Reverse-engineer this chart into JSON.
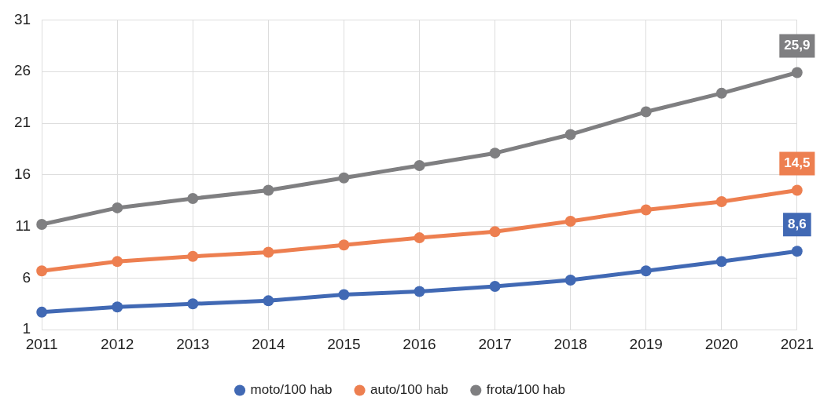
{
  "chart_data": {
    "type": "line",
    "categories": [
      "2011",
      "2012",
      "2013",
      "2014",
      "2015",
      "2016",
      "2017",
      "2018",
      "2019",
      "2020",
      "2021"
    ],
    "series": [
      {
        "name": "moto/100 hab",
        "color": "#4169b4",
        "values": [
          2.7,
          3.2,
          3.5,
          3.8,
          4.4,
          4.7,
          5.2,
          5.8,
          6.7,
          7.6,
          8.6
        ],
        "value_labels": [
          null,
          null,
          null,
          null,
          null,
          null,
          null,
          null,
          null,
          null,
          "8,6"
        ]
      },
      {
        "name": "auto/100 hab",
        "color": "#ed7f50",
        "values": [
          6.7,
          7.6,
          8.1,
          8.5,
          9.2,
          9.9,
          10.5,
          11.5,
          12.6,
          13.4,
          14.5
        ],
        "value_labels": [
          null,
          null,
          null,
          null,
          null,
          null,
          null,
          null,
          null,
          null,
          "14,5"
        ]
      },
      {
        "name": "frota/100 hab",
        "color": "#7f7f81",
        "values": [
          11.2,
          12.8,
          13.7,
          14.5,
          15.7,
          16.9,
          18.1,
          19.9,
          22.1,
          23.9,
          25.9
        ],
        "value_labels": [
          null,
          null,
          null,
          null,
          null,
          null,
          null,
          null,
          null,
          null,
          "25,9"
        ]
      }
    ],
    "ylim": [
      1,
      31
    ],
    "yticks": [
      1,
      6,
      11,
      16,
      21,
      26,
      31
    ],
    "grid": true,
    "legend": "bottom",
    "marker": "circle",
    "line_style": "solid"
  }
}
